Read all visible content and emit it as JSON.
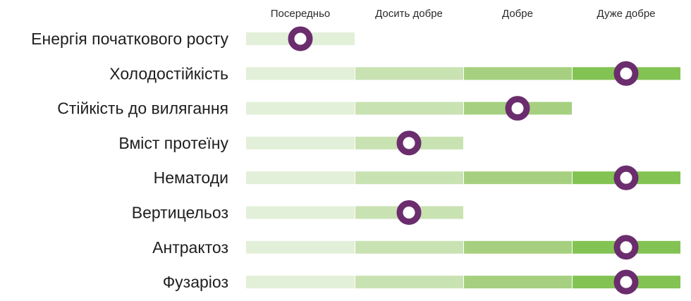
{
  "chart_data": {
    "type": "bar",
    "categories": [
      "Посередньо",
      "Досить добре",
      "Добре",
      "Дуже добре"
    ],
    "rows": [
      {
        "label": "Енергія початкового росту",
        "level": 1,
        "marker": 0.5
      },
      {
        "label": "Холодостійкість",
        "level": 4,
        "marker": 3.5
      },
      {
        "label": "Стійкість до вилягання",
        "level": 3,
        "marker": 2.5
      },
      {
        "label": "Вміст протеїну",
        "level": 2,
        "marker": 1.5
      },
      {
        "label": "Нематоди",
        "level": 4,
        "marker": 3.5
      },
      {
        "label": "Вертицельоз",
        "level": 2,
        "marker": 1.5
      },
      {
        "label": "Антрактоз",
        "level": 4,
        "marker": 3.5
      },
      {
        "label": "Фузаріоз",
        "level": 4,
        "marker": 3.5
      }
    ],
    "segment_colors": [
      "#e3f0d9",
      "#c9e2b2",
      "#a6d07f",
      "#82c353"
    ],
    "marker_color": "#6b2d6e"
  }
}
